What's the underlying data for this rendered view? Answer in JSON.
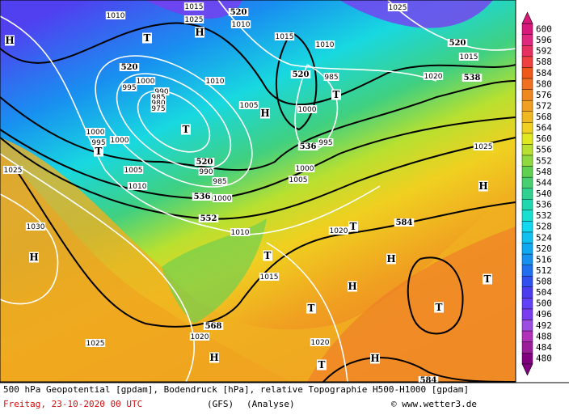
{
  "map": {
    "map_labels": [
      "1010",
      "1015",
      "1025",
      "H",
      "520",
      "1010",
      "T",
      "H",
      "1015",
      "1010",
      "1025",
      "520",
      "1015",
      "520",
      "1000",
      "995",
      "990",
      "985",
      "980",
      "975",
      "520",
      "985",
      "T",
      "1005",
      "H",
      "1000",
      "1010",
      "1020",
      "538",
      "T",
      "1000",
      "995",
      "T",
      "1000",
      "536",
      "995",
      "1025",
      "1025",
      "1005",
      "520",
      "990",
      "985",
      "1000",
      "1005",
      "1010",
      "536",
      "1000",
      "552",
      "H",
      "1010",
      "1020",
      "T",
      "584",
      "1030",
      "H",
      "T",
      "H",
      "1015",
      "H",
      "T",
      "T",
      "T",
      "568",
      "1020",
      "1025",
      "1020",
      "H",
      "H",
      "T",
      "584"
    ],
    "legend": {
      "levels": [
        600,
        596,
        592,
        588,
        584,
        580,
        576,
        572,
        568,
        564,
        560,
        556,
        552,
        548,
        544,
        540,
        536,
        532,
        528,
        524,
        520,
        516,
        512,
        508,
        504,
        500,
        496,
        492,
        488,
        484,
        480
      ],
      "colors": [
        "#d8187a",
        "#e02880",
        "#e83060",
        "#f04040",
        "#f05818",
        "#f07020",
        "#f08820",
        "#f0a020",
        "#f0b820",
        "#f0d020",
        "#e0e820",
        "#b8e030",
        "#90d840",
        "#60d050",
        "#48d070",
        "#30d090",
        "#20d8b0",
        "#18e0d0",
        "#10d8f0",
        "#10c0f0",
        "#10a8f0",
        "#1890f0",
        "#2070f0",
        "#3050f0",
        "#4c3cf0",
        "#6040f8",
        "#7a3cf0",
        "#9c4ce0",
        "#b030b8",
        "#9a1e9a",
        "#800080"
      ]
    },
    "footer": {
      "title": "500 hPa Geopotential [gpdam], Bodendruck [hPa], relative Topographie H500-H1000 [gpdam]",
      "date": "Freitag, 23-10-2020  00 UTC",
      "model": "(GFS)",
      "run": "(Analyse)",
      "credit": "© www.wetter3.de"
    }
  }
}
